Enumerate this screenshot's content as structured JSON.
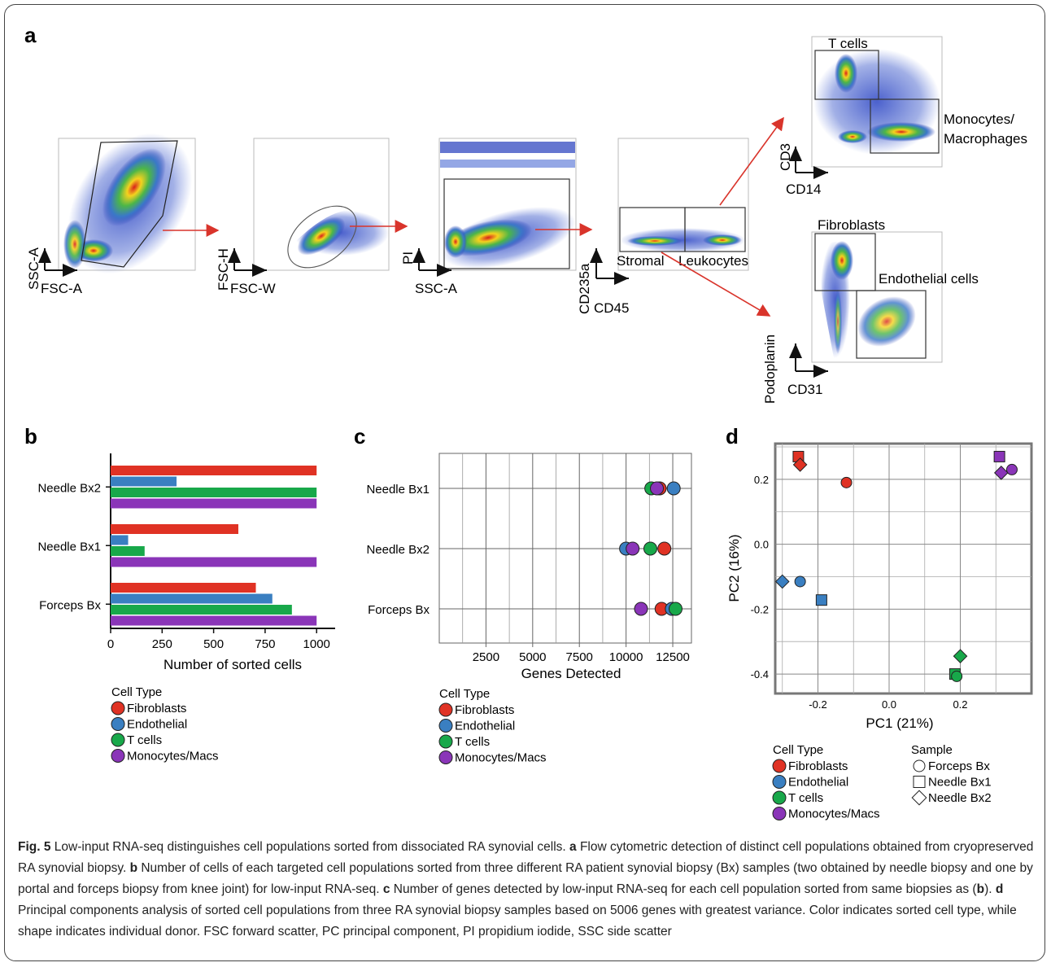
{
  "panel_labels": {
    "a": "a",
    "b": "b",
    "c": "c",
    "d": "d"
  },
  "flow": {
    "plots": [
      {
        "x_axis": "FSC-A",
        "y_axis": "SSC-A"
      },
      {
        "x_axis": "FSC-W",
        "y_axis": "FSC-H"
      },
      {
        "x_axis": "SSC-A",
        "y_axis": "PI"
      },
      {
        "x_axis": "CD45",
        "y_axis": "CD235a"
      },
      {
        "x_axis": "CD14",
        "y_axis": "CD3"
      },
      {
        "x_axis": "CD31",
        "y_axis": "Podoplanin"
      }
    ],
    "gates": {
      "stromal": "Stromal",
      "leukocytes": "Leukocytes",
      "t_cells": "T cells",
      "monocytes_line1": "Monocytes/",
      "monocytes_line2": "Macrophages",
      "fibroblasts": "Fibroblasts",
      "endothelial": "Endothelial cells"
    }
  },
  "colors": {
    "Fibroblasts": "#e03224",
    "Endothelial": "#3a7fc1",
    "T cells": "#18a84a",
    "Monocytes/Macs": "#8a35b8",
    "arrow": "#d9342b",
    "panel_d_border": "#777777"
  },
  "legend": {
    "cell_type_title": "Cell Type",
    "cell_types": [
      "Fibroblasts",
      "Endothelial",
      "T cells",
      "Monocytes/Macs"
    ],
    "sample_title": "Sample",
    "samples": [
      "Forceps Bx",
      "Needle Bx1",
      "Needle Bx2"
    ],
    "sample_shapes": [
      "circle",
      "square",
      "diamond"
    ]
  },
  "chart_data": [
    {
      "type": "bar",
      "orientation": "horizontal",
      "categories": [
        "Needle Bx2",
        "Needle Bx1",
        "Forceps Bx"
      ],
      "series": [
        {
          "name": "Fibroblasts",
          "values": [
            1000,
            620,
            705
          ]
        },
        {
          "name": "Endothelial",
          "values": [
            320,
            85,
            785
          ]
        },
        {
          "name": "T cells",
          "values": [
            1000,
            165,
            880
          ]
        },
        {
          "name": "Monocytes/Macs",
          "values": [
            1000,
            1000,
            1000
          ]
        }
      ],
      "xlabel": "Number of sorted cells",
      "xlim": [
        0,
        1090
      ],
      "xticks": [
        0,
        250,
        500,
        750,
        1000
      ],
      "legend_title": "Cell Type"
    },
    {
      "type": "scatter",
      "categories": [
        "Needle Bx1",
        "Needle Bx2",
        "Forceps Bx"
      ],
      "points": [
        {
          "cell": "Fibroblasts",
          "sample": "Needle Bx1",
          "x": 11800
        },
        {
          "cell": "Endothelial",
          "sample": "Needle Bx1",
          "x": 12550
        },
        {
          "cell": "T cells",
          "sample": "Needle Bx1",
          "x": 11350
        },
        {
          "cell": "Monocytes/Macs",
          "sample": "Needle Bx1",
          "x": 11650
        },
        {
          "cell": "Fibroblasts",
          "sample": "Needle Bx2",
          "x": 12050
        },
        {
          "cell": "Endothelial",
          "sample": "Needle Bx2",
          "x": 10000
        },
        {
          "cell": "T cells",
          "sample": "Needle Bx2",
          "x": 11300
        },
        {
          "cell": "Monocytes/Macs",
          "sample": "Needle Bx2",
          "x": 10350
        },
        {
          "cell": "Fibroblasts",
          "sample": "Forceps Bx",
          "x": 11900
        },
        {
          "cell": "Endothelial",
          "sample": "Forceps Bx",
          "x": 12450
        },
        {
          "cell": "T cells",
          "sample": "Forceps Bx",
          "x": 12650
        },
        {
          "cell": "Monocytes/Macs",
          "sample": "Forceps Bx",
          "x": 10800
        }
      ],
      "xlabel": "Genes Detected",
      "xlim": [
        0,
        13500
      ],
      "xticks": [
        2500,
        5000,
        7500,
        10000,
        12500
      ],
      "legend_title": "Cell Type"
    },
    {
      "type": "scatter",
      "points": [
        {
          "cell": "Fibroblasts",
          "sample": "Needle Bx1",
          "x": -0.255,
          "y": 0.27
        },
        {
          "cell": "Fibroblasts",
          "sample": "Needle Bx2",
          "x": -0.25,
          "y": 0.245
        },
        {
          "cell": "Fibroblasts",
          "sample": "Forceps Bx",
          "x": -0.12,
          "y": 0.19
        },
        {
          "cell": "Monocytes/Macs",
          "sample": "Needle Bx1",
          "x": 0.31,
          "y": 0.27
        },
        {
          "cell": "Monocytes/Macs",
          "sample": "Needle Bx2",
          "x": 0.315,
          "y": 0.22
        },
        {
          "cell": "Monocytes/Macs",
          "sample": "Forceps Bx",
          "x": 0.345,
          "y": 0.23
        },
        {
          "cell": "Endothelial",
          "sample": "Needle Bx2",
          "x": -0.3,
          "y": -0.115
        },
        {
          "cell": "Endothelial",
          "sample": "Forceps Bx",
          "x": -0.25,
          "y": -0.115
        },
        {
          "cell": "Endothelial",
          "sample": "Needle Bx1",
          "x": -0.19,
          "y": -0.172
        },
        {
          "cell": "T cells",
          "sample": "Needle Bx2",
          "x": 0.2,
          "y": -0.345
        },
        {
          "cell": "T cells",
          "sample": "Needle Bx1",
          "x": 0.185,
          "y": -0.4
        },
        {
          "cell": "T cells",
          "sample": "Forceps Bx",
          "x": 0.19,
          "y": -0.407
        }
      ],
      "xlabel": "PC1 (21%)",
      "ylabel": "PC2 (16%)",
      "xlim": [
        -0.32,
        0.4
      ],
      "ylim": [
        -0.46,
        0.31
      ],
      "xticks": [
        -0.2,
        0.0,
        0.2
      ],
      "yticks": [
        0.2,
        0.0,
        -0.2,
        -0.4
      ],
      "tick_labels_x": [
        "-0.2",
        "0.0",
        "0.2"
      ],
      "tick_labels_y": [
        "0.2",
        "0.0",
        "-0.2",
        "-0.4"
      ],
      "grid": true
    }
  ],
  "caption": {
    "fig_label": "Fig. 5",
    "s1": " Low-input RNA-seq distinguishes cell populations sorted from dissociated RA synovial cells. ",
    "la": "a",
    "s2": " Flow cytometric detection of distinct cell populations obtained from cryopreserved RA synovial biopsy. ",
    "lb": "b",
    "s3": " Number of cells of each targeted cell populations sorted from three different RA patient synovial biopsy (Bx) samples (two obtained by needle biopsy and one by portal and forceps biopsy from knee joint) for low-input RNA-seq. ",
    "lc": "c",
    "s4": " Number of genes detected by low-input RNA-seq for each cell population sorted from same biopsies as (",
    "lb2": "b",
    "s5": "). ",
    "ld": "d",
    "s6": " Principal components analysis of sorted cell populations from three RA synovial biopsy samples based on 5006 genes with greatest variance. Color indicates sorted cell type, while shape indicates individual donor. FSC forward scatter, PC principal component, PI propidium iodide, SSC side scatter"
  }
}
